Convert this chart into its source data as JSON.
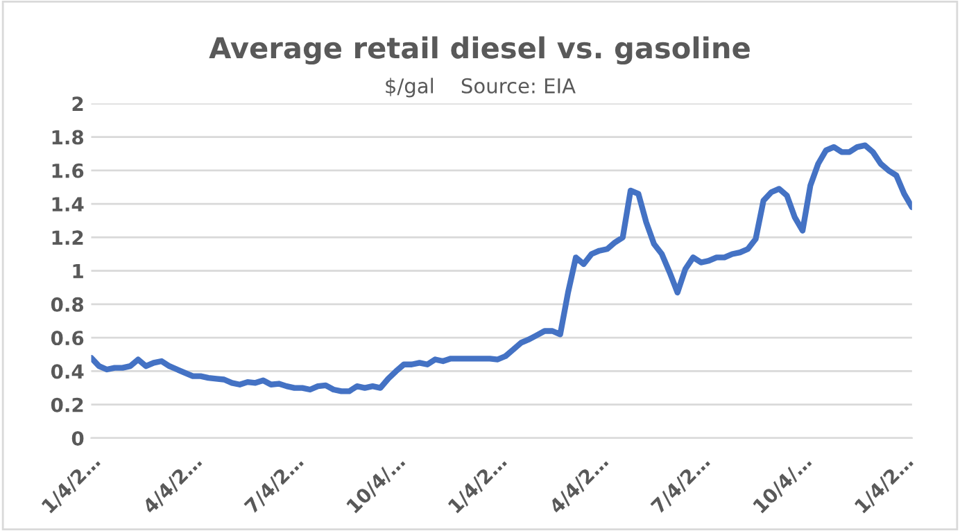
{
  "chart_data": {
    "type": "line",
    "title": "Average retail diesel vs. gasoline",
    "subtitle": "$/gal    Source: EIA",
    "categories": [
      "1/4/2…",
      null,
      null,
      null,
      null,
      null,
      null,
      null,
      null,
      null,
      null,
      null,
      null,
      "4/4/2…",
      null,
      null,
      null,
      null,
      null,
      null,
      null,
      null,
      null,
      null,
      null,
      null,
      "7/4/2…",
      null,
      null,
      null,
      null,
      null,
      null,
      null,
      null,
      null,
      null,
      null,
      null,
      "10/4/…",
      null,
      null,
      null,
      null,
      null,
      null,
      null,
      null,
      null,
      null,
      null,
      null,
      "1/4/2…",
      null,
      null,
      null,
      null,
      null,
      null,
      null,
      null,
      null,
      null,
      null,
      null,
      "4/4/2…",
      null,
      null,
      null,
      null,
      null,
      null,
      null,
      null,
      null,
      null,
      null,
      null,
      "7/4/2…",
      null,
      null,
      null,
      null,
      null,
      null,
      null,
      null,
      null,
      null,
      null,
      null,
      "10/4/…",
      null,
      null,
      null,
      null,
      null,
      null,
      null,
      null,
      null,
      null,
      null,
      null,
      "1/4/2…",
      null
    ],
    "series": [
      {
        "color": "#4472c4",
        "values": [
          0.48,
          0.43,
          0.41,
          0.42,
          0.42,
          0.43,
          0.47,
          0.43,
          0.45,
          0.46,
          0.43,
          0.41,
          0.39,
          0.37,
          0.37,
          0.36,
          0.355,
          0.35,
          0.33,
          0.32,
          0.335,
          0.33,
          0.345,
          0.32,
          0.325,
          0.31,
          0.3,
          0.3,
          0.29,
          0.31,
          0.315,
          0.29,
          0.28,
          0.28,
          0.31,
          0.3,
          0.31,
          0.3,
          0.355,
          0.4,
          0.44,
          0.44,
          0.45,
          0.44,
          0.47,
          0.46,
          0.475,
          0.475,
          0.475,
          0.475,
          0.475,
          0.475,
          0.47,
          0.49,
          0.53,
          0.57,
          0.59,
          0.615,
          0.64,
          0.64,
          0.62,
          0.87,
          1.08,
          1.04,
          1.1,
          1.12,
          1.13,
          1.17,
          1.2,
          1.48,
          1.46,
          1.29,
          1.16,
          1.1,
          0.99,
          0.87,
          1.01,
          1.08,
          1.05,
          1.06,
          1.08,
          1.08,
          1.1,
          1.11,
          1.13,
          1.19,
          1.42,
          1.47,
          1.49,
          1.45,
          1.32,
          1.24,
          1.51,
          1.64,
          1.72,
          1.74,
          1.71,
          1.71,
          1.74,
          1.75,
          1.71,
          1.64,
          1.6,
          1.57,
          1.46,
          1.38
        ]
      }
    ],
    "ylim": [
      0,
      2
    ],
    "yticks": [
      0,
      0.2,
      0.4,
      0.6,
      0.8,
      1,
      1.2,
      1.4,
      1.6,
      1.8,
      2
    ],
    "grid": "y",
    "marker": "none",
    "line_style": "solid",
    "legend": false
  }
}
